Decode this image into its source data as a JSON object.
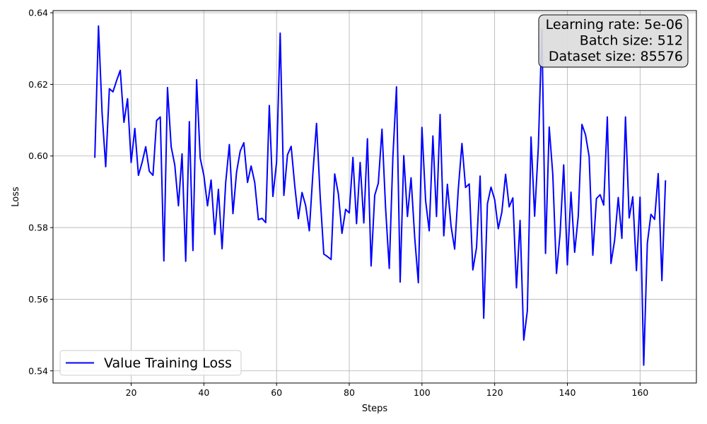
{
  "chart_data": {
    "type": "line",
    "title": "",
    "xlabel": "Steps",
    "ylabel": "Loss",
    "xlim": [
      -1.5,
      175.5
    ],
    "ylim": [
      0.5366,
      0.6406
    ],
    "xticks": [
      20,
      40,
      60,
      80,
      100,
      120,
      140,
      160
    ],
    "yticks": [
      0.54,
      0.56,
      0.58,
      0.6,
      0.62,
      0.64
    ],
    "grid": true,
    "legend_position": "lower-left",
    "info_box": {
      "lines": [
        "Learning rate: 5e-06",
        "Batch size: 512",
        "Dataset size: 85576"
      ],
      "position": "top-right"
    },
    "series": [
      {
        "name": "Value Training Loss",
        "color": "#0000ff",
        "x": [
          10,
          11,
          12,
          13,
          14,
          15,
          16,
          17,
          18,
          19,
          20,
          21,
          22,
          23,
          24,
          25,
          26,
          27,
          28,
          29,
          30,
          31,
          32,
          33,
          34,
          35,
          36,
          37,
          38,
          39,
          40,
          41,
          42,
          43,
          44,
          45,
          46,
          47,
          48,
          49,
          50,
          51,
          52,
          53,
          54,
          55,
          56,
          57,
          58,
          59,
          60,
          61,
          62,
          63,
          64,
          65,
          66,
          67,
          68,
          69,
          70,
          71,
          72,
          73,
          74,
          75,
          76,
          77,
          78,
          79,
          80,
          81,
          82,
          83,
          84,
          85,
          86,
          87,
          88,
          89,
          90,
          91,
          92,
          93,
          94,
          95,
          96,
          97,
          98,
          99,
          100,
          101,
          102,
          103,
          104,
          105,
          106,
          107,
          108,
          109,
          110,
          111,
          112,
          113,
          114,
          115,
          116,
          117,
          118,
          119,
          120,
          121,
          122,
          123,
          124,
          125,
          126,
          127,
          128,
          129,
          130,
          131,
          132,
          133,
          134,
          135,
          136,
          137,
          138,
          139,
          140,
          141,
          142,
          143,
          144,
          145,
          146,
          147,
          148,
          149,
          150,
          151,
          152,
          153,
          154,
          155,
          156,
          157,
          158,
          159,
          160,
          161,
          162,
          163,
          164,
          165,
          166,
          167
        ],
        "y": [
          0.5995,
          0.6363,
          0.612,
          0.597,
          0.6188,
          0.6179,
          0.6211,
          0.6239,
          0.6094,
          0.616,
          0.5982,
          0.6077,
          0.5946,
          0.5982,
          0.6026,
          0.5957,
          0.5946,
          0.6099,
          0.6109,
          0.5707,
          0.6191,
          0.6026,
          0.5975,
          0.5861,
          0.6006,
          0.5706,
          0.6096,
          0.5736,
          0.6213,
          0.5994,
          0.5945,
          0.5861,
          0.5933,
          0.5781,
          0.5907,
          0.5741,
          0.5925,
          0.6032,
          0.5839,
          0.5955,
          0.6014,
          0.6037,
          0.5926,
          0.5972,
          0.5926,
          0.5822,
          0.5826,
          0.5814,
          0.6141,
          0.5887,
          0.5983,
          0.6343,
          0.589,
          0.6003,
          0.6027,
          0.5917,
          0.5825,
          0.5898,
          0.5862,
          0.5791,
          0.5953,
          0.6091,
          0.5886,
          0.5726,
          0.5719,
          0.5711,
          0.595,
          0.5894,
          0.5784,
          0.5851,
          0.5841,
          0.5996,
          0.5811,
          0.5982,
          0.5813,
          0.6048,
          0.5693,
          0.589,
          0.5924,
          0.6075,
          0.5854,
          0.5686,
          0.5997,
          0.6193,
          0.5648,
          0.6001,
          0.5831,
          0.5939,
          0.5772,
          0.5646,
          0.608,
          0.5875,
          0.5791,
          0.6056,
          0.5831,
          0.6116,
          0.5777,
          0.5921,
          0.5804,
          0.574,
          0.5907,
          0.6035,
          0.5912,
          0.5922,
          0.5682,
          0.5744,
          0.5944,
          0.5547,
          0.5866,
          0.5913,
          0.5878,
          0.5797,
          0.5844,
          0.5949,
          0.5858,
          0.5883,
          0.5632,
          0.582,
          0.5486,
          0.5568,
          0.6053,
          0.5832,
          0.6024,
          0.6354,
          0.5728,
          0.6081,
          0.5948,
          0.5672,
          0.5783,
          0.5975,
          0.5696,
          0.5899,
          0.5731,
          0.5832,
          0.6088,
          0.6059,
          0.5998,
          0.5723,
          0.5881,
          0.5892,
          0.5863,
          0.6109,
          0.57,
          0.5764,
          0.5884,
          0.577,
          0.6109,
          0.5827,
          0.5886,
          0.568,
          0.5885,
          0.5416,
          0.5756,
          0.5837,
          0.5823,
          0.5951,
          0.5652,
          0.5932
        ]
      }
    ]
  }
}
